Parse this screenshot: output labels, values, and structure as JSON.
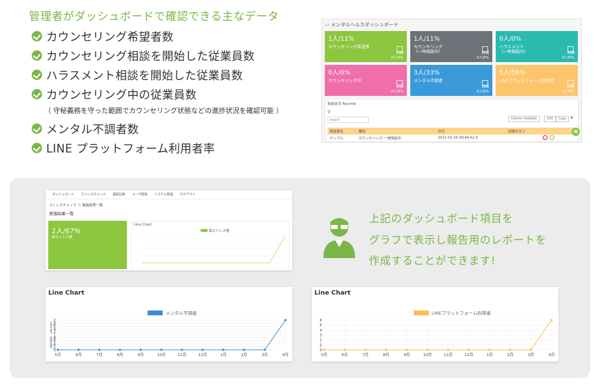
{
  "heading": "管理者がダッシュボードで確認できる主なデータ",
  "features": [
    "カウンセリング希望者数",
    "カウンセリング相談を開始した従業員数",
    "ハラスメント相談を開始した従業員数",
    "カウンセリング中の従業員数",
    "メンタル不調者数",
    "LINE プラットフォーム利用者率"
  ],
  "feature_note": "（ 守秘義務を守った範囲でカウンセリング状態などの進捗状況を確認可能 ）",
  "dashboard": {
    "title": "メンタルヘルスダッシュボード",
    "tiles": [
      {
        "value": "1人/11%",
        "label": "カウンセリング希望者",
        "color": "#8dc63f"
      },
      {
        "value": "1人/11%",
        "label": "カウンセリング\n（一時相談中）",
        "color": "#6d7278"
      },
      {
        "value": "0人/0%",
        "label": "ハラスメント\n（一時相談中）",
        "color": "#2bbab0"
      },
      {
        "value": "0人/0%",
        "label": "カウンセリング中",
        "color": "#f06eaa"
      },
      {
        "value": "3人/33%",
        "label": "メンタル不調者",
        "color": "#3a9ad9"
      },
      {
        "value": "5人/56%",
        "label": "LINEプラットフォーム利用者",
        "color": "#fdc56b"
      }
    ],
    "tile_small": "詳細\n0人/0%",
    "table_title": "有給状況 Records",
    "search_placeholder": "Search",
    "buttons": [
      "Column Visibility",
      "CSV",
      "Copy"
    ],
    "columns": [
      "相談者名",
      "種別",
      "日付",
      "詳細ボタン"
    ],
    "row": [
      "サンプル",
      "カウンセリング-一時相談中",
      "2021-02-16 09:49:42.0",
      ""
    ]
  },
  "report_card": {
    "nav": [
      "ダッシュボード",
      "ストレスチェック",
      "面談記録",
      "ユーザ登録",
      "システム管理",
      "ログアウト"
    ],
    "breadcrumb": "ストレスチェック ＞ 実施結果一覧",
    "title": "実施結果一覧",
    "tile_value": "2人/67%",
    "tile_label": "高ストレス者",
    "chart_title": "Line Chart",
    "legend": "高ストレス者"
  },
  "description_lines": [
    "上記のダッシュボード項目を",
    "グラフで表示し報告用のレポートを",
    "作成することができます!"
  ],
  "chart_data": [
    {
      "type": "line",
      "title": "Line Chart",
      "categories": [
        "5月",
        "6月",
        "7月",
        "8月",
        "9月",
        "10月",
        "11月",
        "12月",
        "1月",
        "2月",
        "3月",
        "4月"
      ],
      "series": [
        {
          "name": "メンタル不調者",
          "values": [
            0,
            0,
            0,
            0,
            0,
            0,
            0,
            0,
            0,
            0,
            0,
            2
          ],
          "color": "#3a8fd4"
        }
      ],
      "yticks": [
        "0",
        "0.2",
        "0.4",
        "0.6",
        "0.8",
        "1",
        "1.2",
        "1.4",
        "1.6",
        "1.8",
        "2"
      ],
      "ylim": [
        0,
        2
      ]
    },
    {
      "type": "line",
      "title": "Line Chart",
      "categories": [
        "5月",
        "6月",
        "7月",
        "8月",
        "9月",
        "10月",
        "11月",
        "12月",
        "1月",
        "2月",
        "3月",
        "4月"
      ],
      "series": [
        {
          "name": "LINEプラットフォーム利用者",
          "values": [
            0,
            0,
            0,
            0,
            0,
            0,
            0,
            0,
            0,
            0,
            0,
            6
          ],
          "color": "#fbbd52"
        }
      ],
      "yticks": [
        "0",
        "1",
        "2",
        "3",
        "4",
        "5",
        "6"
      ],
      "ylim": [
        0,
        6
      ]
    }
  ]
}
